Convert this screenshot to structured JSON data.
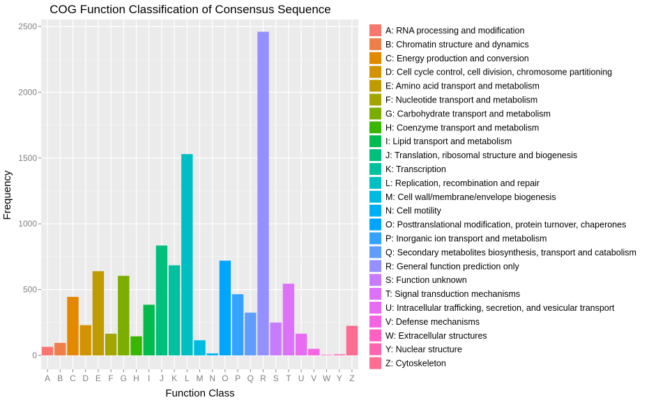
{
  "chart_data": {
    "type": "bar",
    "title": "COG Function Classification of Consensus Sequence",
    "xlabel": "Function Class",
    "ylabel": "Frequency",
    "ylim": [
      0,
      2600
    ],
    "yticks": [
      0,
      500,
      1000,
      1500,
      2000,
      2500
    ],
    "grid": true,
    "legend_position": "right",
    "categories": [
      "A",
      "B",
      "C",
      "D",
      "E",
      "F",
      "G",
      "H",
      "I",
      "J",
      "K",
      "L",
      "M",
      "N",
      "O",
      "P",
      "Q",
      "R",
      "S",
      "T",
      "U",
      "V",
      "W",
      "Y",
      "Z"
    ],
    "values": [
      65,
      95,
      445,
      230,
      640,
      165,
      605,
      145,
      385,
      835,
      685,
      1530,
      115,
      15,
      720,
      465,
      325,
      2460,
      250,
      545,
      165,
      50,
      3,
      8,
      225
    ],
    "colors": [
      "#F8766D",
      "#EF7F49",
      "#E38900",
      "#D39200",
      "#C09B00",
      "#A3A500",
      "#7CAE00",
      "#39B600",
      "#00BB4E",
      "#00BF7D",
      "#00C19F",
      "#00BFC4",
      "#00BAE0",
      "#00B0F6",
      "#00A5FF",
      "#35A2FF",
      "#619CFF",
      "#9590FF",
      "#C77CFF",
      "#DC71FA",
      "#E76BF3",
      "#F564E3",
      "#FF61C3",
      "#FF65AE",
      "#FF6C91"
    ],
    "legend": [
      "A: RNA processing and modification",
      "B: Chromatin structure and dynamics",
      "C: Energy production and conversion",
      "D: Cell cycle control, cell division, chromosome partitioning",
      "E: Amino acid transport and metabolism",
      "F: Nucleotide transport and metabolism",
      "G: Carbohydrate transport and metabolism",
      "H: Coenzyme transport and metabolism",
      "I: Lipid transport and metabolism",
      "J: Translation, ribosomal structure and biogenesis",
      "K: Transcription",
      "L: Replication, recombination and repair",
      "M: Cell wall/membrane/envelope biogenesis",
      "N: Cell motility",
      "O: Posttranslational modification, protein turnover, chaperones",
      "P: Inorganic ion transport and metabolism",
      "Q: Secondary metabolites biosynthesis, transport and catabolism",
      "R: General function prediction only",
      "S: Function unknown",
      "T: Signal transduction mechanisms",
      "U: Intracellular trafficking, secretion, and vesicular transport",
      "V: Defense mechanisms",
      "W: Extracellular structures",
      "Y: Nuclear structure",
      "Z: Cytoskeleton"
    ]
  }
}
